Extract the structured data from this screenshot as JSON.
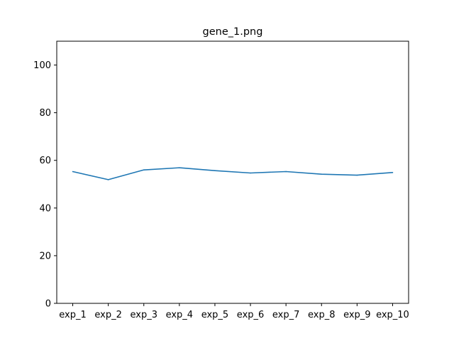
{
  "chart_data": {
    "type": "line",
    "title": "gene_1.png",
    "xlabel": "",
    "ylabel": "",
    "categories": [
      "exp_1",
      "exp_2",
      "exp_3",
      "exp_4",
      "exp_5",
      "exp_6",
      "exp_7",
      "exp_8",
      "exp_9",
      "exp_10"
    ],
    "series": [
      {
        "values": [
          55.3,
          51.9,
          56.0,
          56.9,
          55.7,
          54.7,
          55.3,
          54.2,
          53.8,
          54.9
        ]
      }
    ],
    "ylim": [
      0,
      110
    ],
    "yticks": [
      0,
      20,
      40,
      60,
      80,
      100
    ],
    "grid": false,
    "legend": "none",
    "colors": {
      "line": "#1f77b4",
      "axes": "#000000",
      "background": "#ffffff"
    }
  }
}
